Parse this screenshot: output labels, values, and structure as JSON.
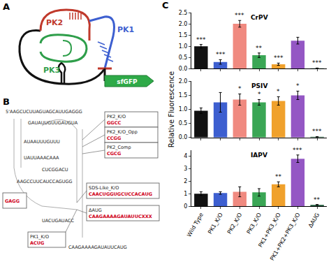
{
  "panels": {
    "a": {
      "label": "A",
      "pk1": "PK1",
      "pk2": "PK2",
      "pk3": "PK3",
      "reporter": "sfGFP"
    },
    "b": {
      "label": "B",
      "sequences": [
        "5'AAGCUCUUAGUAGCAUUGAGGG",
        "GAUAUUGUUGAUGUA",
        "AUAAUUUGUUU",
        "UAUUAAACAAA",
        "AAGCCUUCAUCCAGUGG",
        "UACUGAUACC",
        "CUCGGACU",
        "CAAGAAAAGAUAUUCAUG"
      ],
      "boxes": [
        {
          "seq": "GAGG"
        },
        {
          "label": "PK1_K/O",
          "seq": "ACUG"
        },
        {
          "label": "PK2_K/O",
          "seq": "GGCC"
        },
        {
          "label": "PK2_K/O_Opp",
          "seq": "CCGG"
        },
        {
          "label": "PK2_Comp",
          "seq": "CGCG"
        },
        {
          "label": "SDS-Like_K/O",
          "seq": "CAACUGGUGCUCCACAUG"
        },
        {
          "label": "ΔAUG",
          "seq": "CAAGAAAAGAUAUUCXXX"
        }
      ]
    },
    "c": {
      "label": "C"
    }
  },
  "chart_data": [
    {
      "type": "bar",
      "title": "CrPV",
      "categories": [
        "Wild Type",
        "PK1_K/O",
        "PK2_K/O",
        "PK3_K/O",
        "PK1+PK3_K/O",
        "PK1+PK2+PK3_K/O",
        "ΔAUG"
      ],
      "values": [
        1.0,
        0.3,
        2.0,
        0.6,
        0.2,
        1.25,
        0.02
      ],
      "error": [
        0.08,
        0.1,
        0.15,
        0.1,
        0.05,
        0.15,
        0.01
      ],
      "significance": [
        "***",
        "***",
        "***",
        "**",
        "***",
        null,
        "***"
      ],
      "colors": [
        "#111111",
        "#3d5fd0",
        "#f08a80",
        "#3aa655",
        "#f0a12c",
        "#9457c4",
        "#1e5a3a"
      ],
      "ylim": [
        0,
        2.5
      ],
      "yticks": [
        {
          "value": 0,
          "label": "0.0"
        },
        0.5,
        {
          "value": 1,
          "label": "1.0"
        },
        1.5,
        {
          "value": 2,
          "label": "2.0"
        },
        2.5
      ]
    },
    {
      "type": "bar",
      "title": "PSIV",
      "y_label": "Relative Fluorescence",
      "categories": [
        "Wild Type",
        "PK1_K/O",
        "PK2_K/O",
        "PK3_K/O",
        "PK1+PK3_K/O",
        "PK1+PK2+PK3_K/O",
        "ΔAUG"
      ],
      "values": [
        0.95,
        1.25,
        1.35,
        1.25,
        1.3,
        1.5,
        0.02
      ],
      "error": [
        0.1,
        0.35,
        0.2,
        0.1,
        0.15,
        0.15,
        0.01
      ],
      "significance": [
        null,
        null,
        "*",
        "*",
        "*",
        "*",
        "***"
      ],
      "colors": [
        "#111111",
        "#3d5fd0",
        "#f08a80",
        "#3aa655",
        "#f0a12c",
        "#9457c4",
        "#1e5a3a"
      ],
      "ylim": [
        0,
        2.0
      ],
      "yticks": [
        {
          "value": 0,
          "label": "0.0"
        },
        0.5,
        {
          "value": 1,
          "label": "1.0"
        },
        1.5,
        {
          "value": 2,
          "label": "2.0"
        }
      ]
    },
    {
      "type": "bar",
      "title": "IAPV",
      "categories": [
        "Wild Type",
        "PK1_K/O",
        "PK2_K/O",
        "PK3_K/O",
        "PK1+PK3_K/O",
        "PK1+PK2+PK3_K/O",
        "ΔAUG"
      ],
      "values": [
        1.0,
        1.05,
        1.15,
        1.1,
        1.75,
        3.8,
        0.1
      ],
      "error": [
        0.15,
        0.1,
        0.4,
        0.3,
        0.2,
        0.3,
        0.03
      ],
      "significance": [
        null,
        null,
        null,
        null,
        "**",
        "***",
        "**"
      ],
      "colors": [
        "#111111",
        "#3d5fd0",
        "#f08a80",
        "#3aa655",
        "#f0a12c",
        "#9457c4",
        "#1e5a3a"
      ],
      "ylim": [
        0,
        4.5
      ],
      "yticks": [
        0,
        1,
        2,
        3,
        4
      ]
    }
  ]
}
